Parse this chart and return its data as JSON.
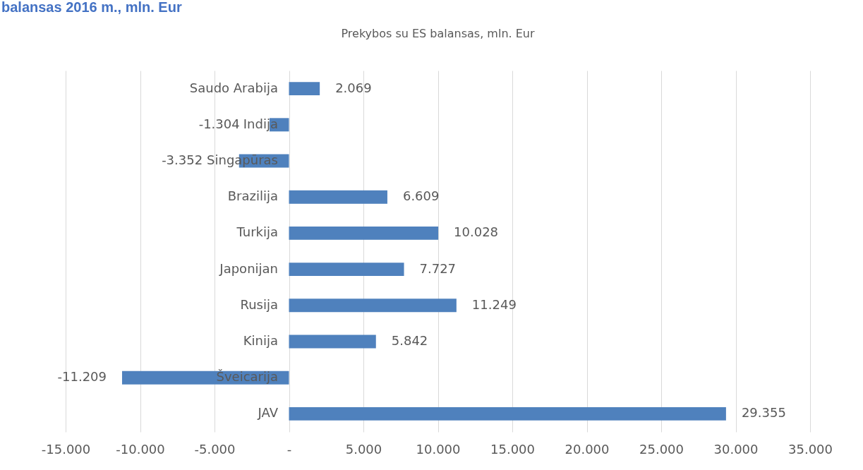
{
  "chart_data": {
    "type": "bar",
    "orientation": "horizontal",
    "title": "Prekybos su ES balansas, mln. Eur",
    "annotations": [
      "balansas 2016 m., mln. Eur"
    ],
    "categories": [
      "Saudo Arabija",
      "Indija",
      "Singapūras",
      "Brazilija",
      "Turkija",
      "Japonijan",
      "Rusija",
      "Kinija",
      "Šveicarija",
      "JAV"
    ],
    "values": [
      2069,
      -1304,
      -3352,
      6609,
      10028,
      7727,
      11249,
      5842,
      -11209,
      29355
    ],
    "value_labels": [
      "2.069",
      "-1.304",
      "-3.352",
      "6.609",
      "10.028",
      "7.727",
      "11.249",
      "5.842",
      "-11.209",
      "29.355"
    ],
    "color": "#4f81bd",
    "xlim": [
      -15000,
      35000
    ],
    "xticks": [
      {
        "value": -15000,
        "label": "-15.000"
      },
      {
        "value": -10000,
        "label": "-10.000"
      },
      {
        "value": -5000,
        "label": "-5.000"
      },
      {
        "value": 0,
        "label": "-"
      },
      {
        "value": 5000,
        "label": "5.000"
      },
      {
        "value": 10000,
        "label": "10.000"
      },
      {
        "value": 15000,
        "label": "15.000"
      },
      {
        "value": 20000,
        "label": "20.000"
      },
      {
        "value": 25000,
        "label": "25.000"
      },
      {
        "value": 30000,
        "label": "30.000"
      },
      {
        "value": 35000,
        "label": "35.000"
      }
    ],
    "grid": "x"
  }
}
